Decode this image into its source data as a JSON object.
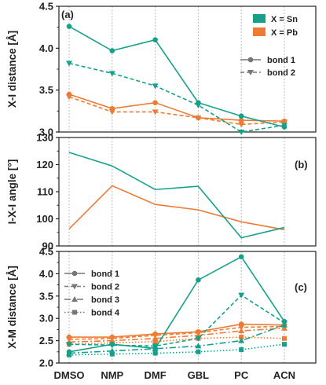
{
  "colors": {
    "Sn": "#16a08c",
    "Pb": "#ee7b35"
  },
  "categories": [
    "DMSO",
    "NMP",
    "DMF",
    "GBL",
    "PC",
    "ACN"
  ],
  "chart_data": [
    {
      "type": "line",
      "panel_label": "(a)",
      "ylabel": "X-I distance [Å]",
      "ylim": [
        3.0,
        4.5
      ],
      "yticks": [
        "3.0",
        "3.5",
        "4.0",
        "4.5"
      ],
      "legend_color": [
        {
          "name": "X = Sn",
          "key": "Sn"
        },
        {
          "name": "X = Pb",
          "key": "Pb"
        }
      ],
      "legend_style": [
        {
          "name": "bond 1",
          "dash": "",
          "marker": "circle"
        },
        {
          "name": "bond 2",
          "dash": "5,3",
          "marker": "tri"
        }
      ],
      "series": [
        {
          "metal": "Sn",
          "bond": 1,
          "dash": "",
          "marker": "circle",
          "values": [
            4.26,
            3.97,
            4.1,
            3.35,
            3.19,
            3.06
          ]
        },
        {
          "metal": "Sn",
          "bond": 2,
          "dash": "5,3",
          "marker": "tri",
          "values": [
            3.82,
            3.7,
            3.55,
            3.32,
            3.0,
            3.08
          ]
        },
        {
          "metal": "Pb",
          "bond": 1,
          "dash": "",
          "marker": "circle",
          "values": [
            3.45,
            3.28,
            3.35,
            3.17,
            3.14,
            3.13
          ]
        },
        {
          "metal": "Pb",
          "bond": 2,
          "dash": "5,3",
          "marker": "tri",
          "values": [
            3.42,
            3.24,
            3.24,
            3.17,
            3.09,
            3.12
          ]
        }
      ]
    },
    {
      "type": "line",
      "panel_label": "(b)",
      "ylabel": "I-X-I angle [°]",
      "ylim": [
        90,
        130
      ],
      "yticks": [
        "90",
        "100",
        "110",
        "120",
        "130"
      ],
      "series": [
        {
          "metal": "Sn",
          "dash": "",
          "marker": "none",
          "values": [
            124.5,
            119.5,
            110.8,
            112.0,
            93.0,
            96.8
          ]
        },
        {
          "metal": "Pb",
          "dash": "",
          "marker": "none",
          "values": [
            96.3,
            112.2,
            105.3,
            103.3,
            98.9,
            96.0
          ]
        }
      ]
    },
    {
      "type": "line",
      "panel_label": "(c)",
      "ylabel": "X-M distance [Å]",
      "ylim": [
        2.0,
        4.5
      ],
      "yticks": [
        "2.0",
        "2.5",
        "3.0",
        "3.5",
        "4.0",
        "4.5"
      ],
      "legend_style": [
        {
          "name": "bond 1",
          "dash": "",
          "marker": "circle"
        },
        {
          "name": "bond 2",
          "dash": "5,3",
          "marker": "tri"
        },
        {
          "name": "bond 3",
          "dash": "8,3,2,3",
          "marker": "tri-up"
        },
        {
          "name": "bond 4",
          "dash": "1.5,2.5",
          "marker": "square"
        }
      ],
      "series": [
        {
          "metal": "Sn",
          "bond": 1,
          "dash": "",
          "marker": "circle",
          "values": [
            2.25,
            2.42,
            2.33,
            3.86,
            4.38,
            2.93
          ]
        },
        {
          "metal": "Sn",
          "bond": 2,
          "dash": "5,3",
          "marker": "tri",
          "values": [
            2.42,
            2.4,
            2.38,
            2.55,
            3.52,
            2.9
          ]
        },
        {
          "metal": "Sn",
          "bond": 3,
          "dash": "8,3,2,3",
          "marker": "tri-up",
          "values": [
            2.22,
            2.27,
            2.32,
            2.38,
            2.5,
            2.85
          ]
        },
        {
          "metal": "Sn",
          "bond": 4,
          "dash": "1.5,2.5",
          "marker": "square",
          "values": [
            2.18,
            2.2,
            2.22,
            2.25,
            2.3,
            2.42
          ]
        },
        {
          "metal": "Pb",
          "bond": 1,
          "dash": "",
          "marker": "circle",
          "values": [
            2.58,
            2.58,
            2.65,
            2.7,
            2.87,
            2.85
          ]
        },
        {
          "metal": "Pb",
          "bond": 2,
          "dash": "5,3",
          "marker": "tri",
          "values": [
            2.53,
            2.55,
            2.62,
            2.68,
            2.8,
            2.82
          ]
        },
        {
          "metal": "Pb",
          "bond": 3,
          "dash": "8,3,2,3",
          "marker": "tri-up",
          "values": [
            2.47,
            2.5,
            2.55,
            2.62,
            2.72,
            2.78
          ]
        },
        {
          "metal": "Pb",
          "bond": 4,
          "dash": "1.5,2.5",
          "marker": "square",
          "values": [
            2.42,
            2.45,
            2.48,
            2.55,
            2.58,
            2.55
          ]
        }
      ]
    }
  ]
}
